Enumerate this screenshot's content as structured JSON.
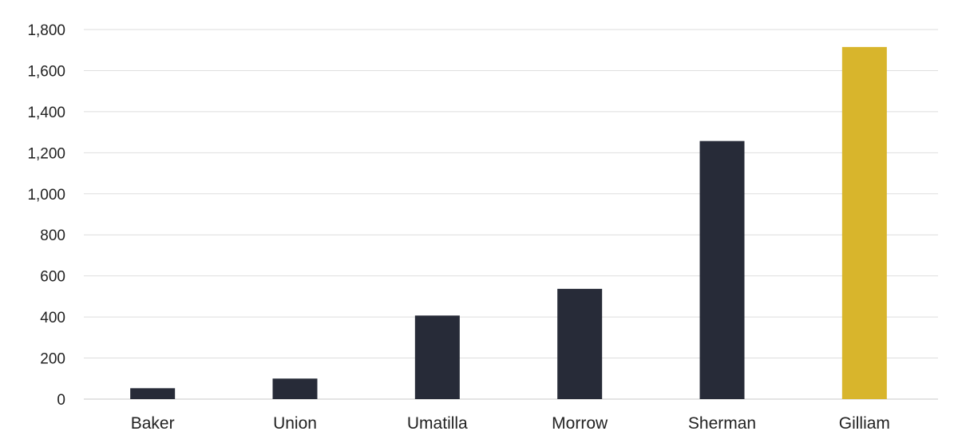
{
  "chart_data": {
    "type": "bar",
    "categories": [
      "Baker",
      "Union",
      "Umatilla",
      "Morrow",
      "Sherman",
      "Gilliam"
    ],
    "values": [
      53,
      100,
      407,
      537,
      1257,
      1715
    ],
    "ylim": [
      0,
      1800
    ],
    "yticks": [
      "0",
      "200",
      "400",
      "600",
      "800",
      "1,000",
      "1,200",
      "1,400",
      "1,600",
      "1,800"
    ],
    "grid": true,
    "legend": "none",
    "colors": {
      "bar": "#272b38",
      "highlight": "#d8b52c",
      "grid": "#dedede",
      "axis": "#c8c8c8",
      "text": "#222222"
    },
    "highlight_index": 5
  }
}
